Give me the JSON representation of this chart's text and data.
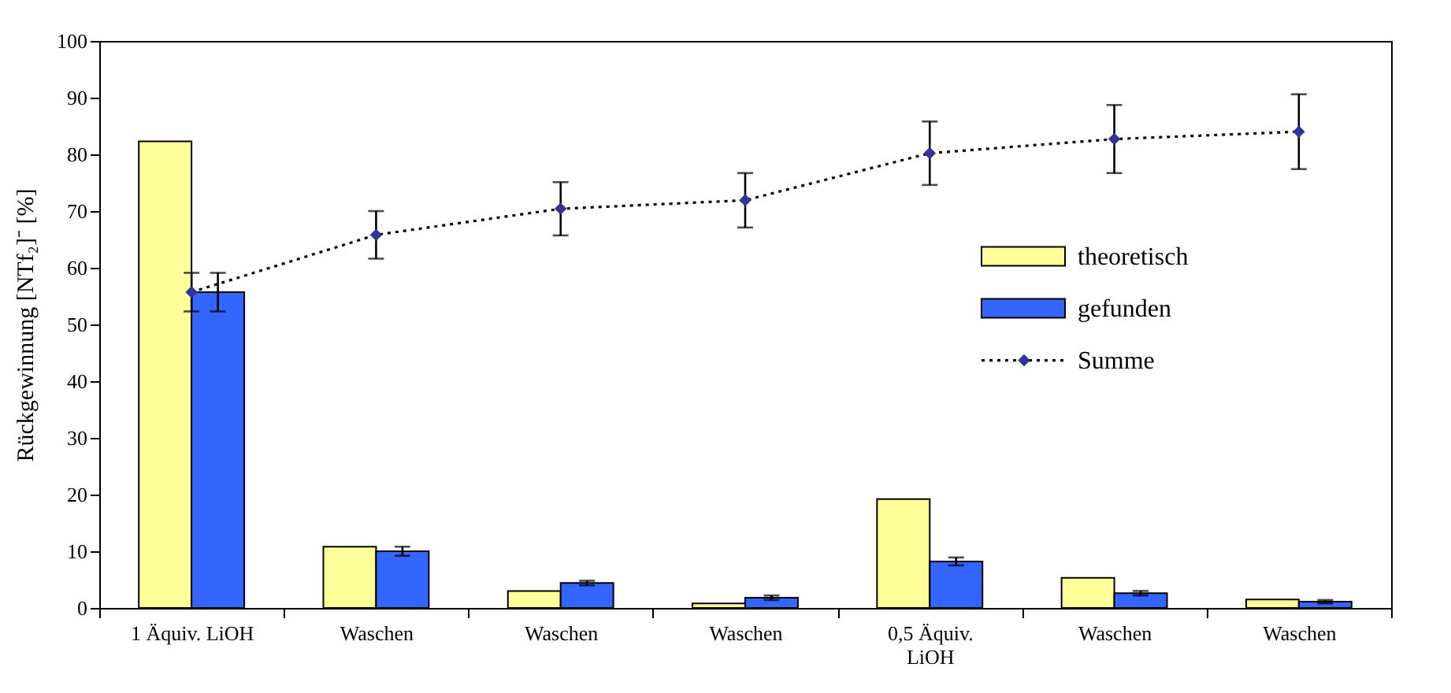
{
  "chart_data": {
    "type": "bar",
    "ylabel": "Rückgewinnung [NTf₂]⁻ [%]",
    "categories": [
      "1 Äquiv. LiOH",
      "Waschen",
      "Waschen",
      "Waschen",
      "0,5 Äquiv.\nLiOH",
      "Waschen",
      "Waschen"
    ],
    "series": [
      {
        "name": "theoretisch",
        "color": "#ffff99",
        "values": [
          82.3,
          10.8,
          3.0,
          0.8,
          19.2,
          5.3,
          1.5
        ]
      },
      {
        "name": "gefunden",
        "color": "#3366ff",
        "values": [
          55.7,
          10.0,
          4.4,
          1.8,
          8.2,
          2.6,
          1.1
        ],
        "errors": [
          3.4,
          0.8,
          0.4,
          0.4,
          0.7,
          0.4,
          0.3
        ]
      },
      {
        "name": "Summe",
        "type": "line",
        "color": "#333399",
        "marker": "diamond",
        "line_style": "dotted",
        "values": [
          55.7,
          65.8,
          70.4,
          71.9,
          80.2,
          82.7,
          84.0
        ],
        "errors": [
          3.4,
          4.2,
          4.7,
          4.8,
          5.6,
          6.0,
          6.6
        ]
      }
    ],
    "ylim": [
      0,
      100
    ],
    "yticks": [
      0,
      10,
      20,
      30,
      40,
      50,
      60,
      70,
      80,
      90,
      100
    ],
    "grid": false,
    "legend": "right"
  }
}
